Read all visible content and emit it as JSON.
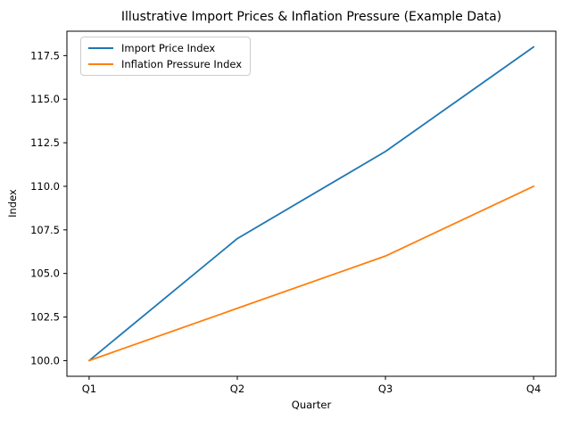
{
  "chart_data": {
    "type": "line",
    "title": "Illustrative Import Prices & Inflation Pressure (Example Data)",
    "xlabel": "Quarter",
    "ylabel": "Index",
    "categories": [
      "Q1",
      "Q2",
      "Q3",
      "Q4"
    ],
    "series": [
      {
        "name": "Import Price Index",
        "color": "#1f77b4",
        "values": [
          100,
          107,
          112,
          118
        ]
      },
      {
        "name": "Inflation Pressure Index",
        "color": "#ff7f0e",
        "values": [
          100,
          103,
          106,
          110
        ]
      }
    ],
    "xlim": [
      -0.15,
      3.15
    ],
    "ylim": [
      99.1,
      118.9
    ],
    "yticks": [
      100.0,
      102.5,
      105.0,
      107.5,
      110.0,
      112.5,
      115.0,
      117.5
    ],
    "ytick_labels": [
      "100.0",
      "102.5",
      "105.0",
      "107.5",
      "110.0",
      "112.5",
      "115.0",
      "117.5"
    ],
    "grid": false,
    "legend_position": "upper left",
    "axis_color": "#000000",
    "background_color": "#ffffff"
  }
}
